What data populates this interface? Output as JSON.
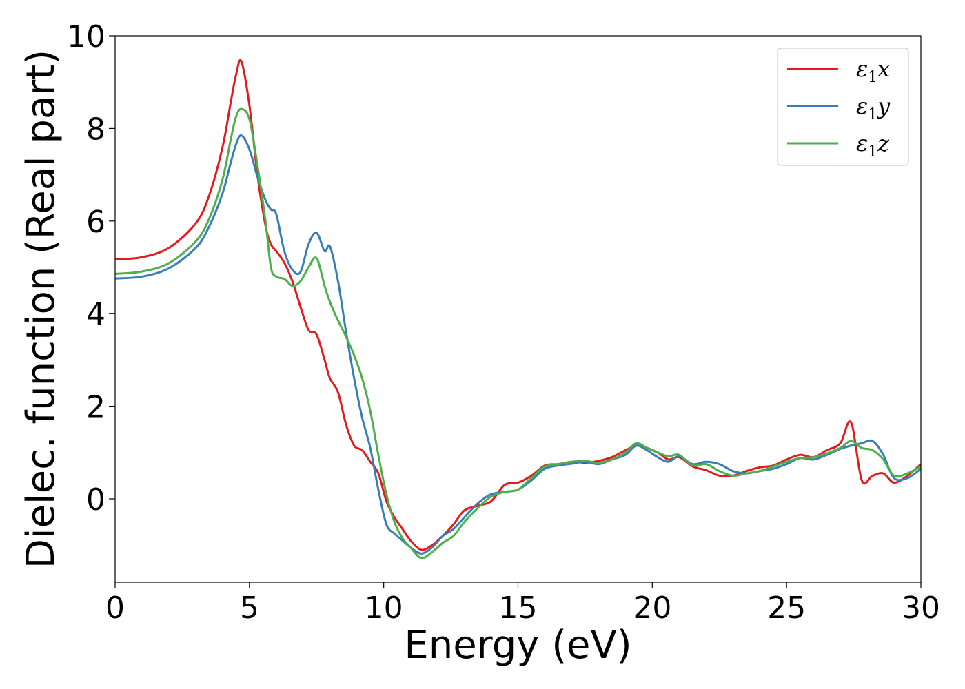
{
  "chart_data": {
    "type": "line",
    "title": "",
    "xlabel": "Energy (eV)",
    "ylabel": "Dielec. function (Real part)",
    "xlim": [
      0,
      30
    ],
    "ylim": [
      -1.8,
      10
    ],
    "xticks": [
      0,
      5,
      10,
      15,
      20,
      25,
      30
    ],
    "yticks": [
      0,
      2,
      4,
      6,
      8,
      10
    ],
    "grid": false,
    "legend_position": "top-right",
    "x": [
      0,
      1,
      2,
      3,
      3.5,
      4,
      4.3,
      4.5,
      4.7,
      5.0,
      5.3,
      5.6,
      5.8,
      6.0,
      6.3,
      6.6,
      6.9,
      7.2,
      7.5,
      7.8,
      8.0,
      8.3,
      8.6,
      8.9,
      9.2,
      9.5,
      9.8,
      10.1,
      10.4,
      10.7,
      11.0,
      11.4,
      11.8,
      12.2,
      12.6,
      13.0,
      13.5,
      14.0,
      14.5,
      15.0,
      15.5,
      16.0,
      16.5,
      17.0,
      17.5,
      18.0,
      18.5,
      19.0,
      19.4,
      19.8,
      20.2,
      20.6,
      21.0,
      21.5,
      22.0,
      22.5,
      23.0,
      23.5,
      24.0,
      24.5,
      25.0,
      25.5,
      26.0,
      26.5,
      27.0,
      27.4,
      27.8,
      28.2,
      28.6,
      29.0,
      29.5,
      30.0
    ],
    "series": [
      {
        "name": "ε1x",
        "color": "#e41a1c",
        "values": [
          5.17,
          5.22,
          5.42,
          5.95,
          6.55,
          7.6,
          8.55,
          9.15,
          9.45,
          8.5,
          7.0,
          5.9,
          5.5,
          5.35,
          5.1,
          4.7,
          4.15,
          3.65,
          3.55,
          3.0,
          2.6,
          2.3,
          1.6,
          1.15,
          1.05,
          0.8,
          0.55,
          -0.05,
          -0.4,
          -0.65,
          -0.9,
          -1.1,
          -1.0,
          -0.8,
          -0.55,
          -0.25,
          -0.15,
          -0.05,
          0.3,
          0.35,
          0.5,
          0.72,
          0.75,
          0.8,
          0.78,
          0.82,
          0.9,
          1.05,
          1.15,
          1.1,
          1.0,
          0.85,
          0.9,
          0.7,
          0.62,
          0.5,
          0.5,
          0.6,
          0.68,
          0.72,
          0.85,
          0.95,
          0.9,
          1.05,
          1.2,
          1.65,
          0.4,
          0.5,
          0.55,
          0.35,
          0.5,
          0.75
        ]
      },
      {
        "name": "ε1y",
        "color": "#377eb8",
        "values": [
          4.76,
          4.8,
          4.98,
          5.42,
          5.88,
          6.6,
          7.25,
          7.65,
          7.85,
          7.55,
          6.95,
          6.45,
          6.25,
          6.15,
          5.35,
          4.95,
          4.9,
          5.5,
          5.75,
          5.35,
          5.45,
          4.7,
          3.6,
          2.6,
          1.75,
          1.1,
          0.2,
          -0.55,
          -0.75,
          -0.9,
          -1.05,
          -1.18,
          -1.05,
          -0.8,
          -0.65,
          -0.4,
          -0.1,
          0.1,
          0.15,
          0.2,
          0.4,
          0.65,
          0.72,
          0.76,
          0.8,
          0.75,
          0.85,
          0.95,
          1.15,
          1.05,
          0.9,
          0.8,
          0.92,
          0.75,
          0.8,
          0.75,
          0.6,
          0.55,
          0.6,
          0.65,
          0.75,
          0.88,
          0.85,
          0.95,
          1.08,
          1.15,
          1.2,
          1.25,
          0.95,
          0.45,
          0.45,
          0.65
        ]
      },
      {
        "name": "ε1z",
        "color": "#4daf4a",
        "values": [
          4.86,
          4.91,
          5.09,
          5.56,
          6.05,
          6.9,
          7.75,
          8.25,
          8.42,
          8.2,
          7.2,
          6.0,
          5.0,
          4.8,
          4.75,
          4.6,
          4.7,
          5.0,
          5.2,
          4.6,
          4.25,
          3.85,
          3.5,
          3.1,
          2.6,
          1.9,
          0.95,
          0.1,
          -0.5,
          -0.85,
          -1.05,
          -1.28,
          -1.15,
          -0.95,
          -0.8,
          -0.5,
          -0.2,
          0.05,
          0.15,
          0.2,
          0.45,
          0.7,
          0.75,
          0.8,
          0.82,
          0.78,
          0.85,
          1.0,
          1.2,
          1.1,
          1.0,
          0.92,
          0.95,
          0.72,
          0.75,
          0.6,
          0.5,
          0.55,
          0.6,
          0.7,
          0.8,
          0.88,
          0.9,
          0.98,
          1.1,
          1.25,
          1.1,
          1.05,
          0.85,
          0.5,
          0.55,
          0.7
        ]
      }
    ]
  }
}
